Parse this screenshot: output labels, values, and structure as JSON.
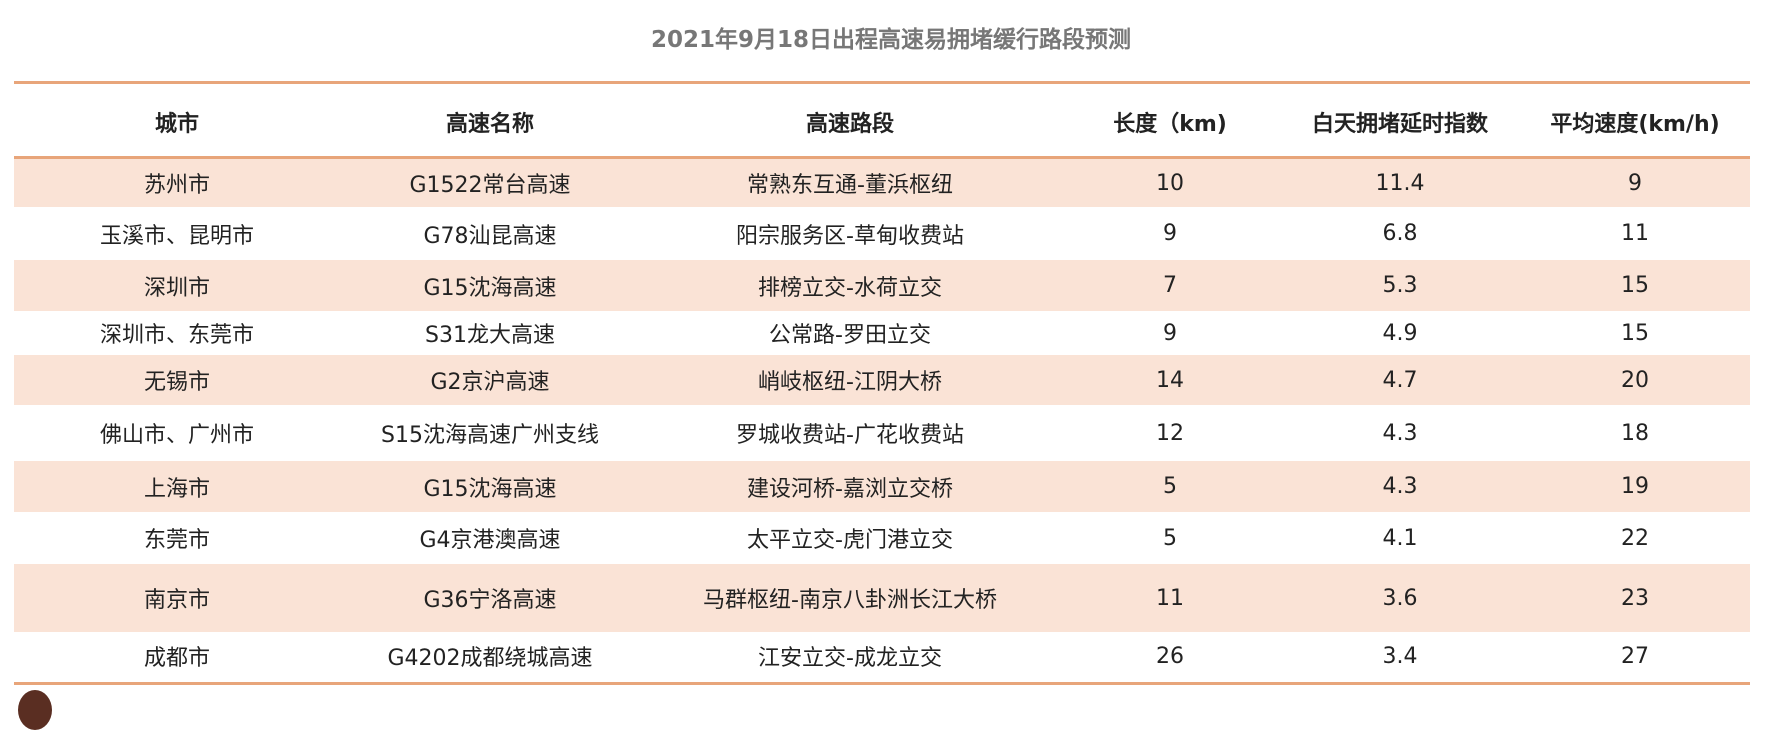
{
  "title": "2021年9月18日出程高速易拥堵缓行路段预测",
  "colors": {
    "accent_line": "#e8a57a",
    "stripe": "#fae3d6"
  },
  "table": {
    "headers": [
      "城市",
      "高速名称",
      "高速路段",
      "长度（km)",
      "白天拥堵延时指数",
      "平均速度(km/h)"
    ],
    "rows": [
      [
        "苏州市",
        "G1522常台高速",
        "常熟东互通-董浜枢纽",
        "10",
        "11.4",
        "9"
      ],
      [
        "玉溪市、昆明市",
        "G78汕昆高速",
        "阳宗服务区-草甸收费站",
        "9",
        "6.8",
        "11"
      ],
      [
        "深圳市",
        "G15沈海高速",
        "排榜立交-水荷立交",
        "7",
        "5.3",
        "15"
      ],
      [
        "深圳市、东莞市",
        "S31龙大高速",
        "公常路-罗田立交",
        "9",
        "4.9",
        "15"
      ],
      [
        "无锡市",
        "G2京沪高速",
        "峭岐枢纽-江阴大桥",
        "14",
        "4.7",
        "20"
      ],
      [
        "佛山市、广州市",
        "S15沈海高速广州支线",
        "罗城收费站-广花收费站",
        "12",
        "4.3",
        "18"
      ],
      [
        "上海市",
        "G15沈海高速",
        "建设河桥-嘉浏立交桥",
        "5",
        "4.3",
        "19"
      ],
      [
        "东莞市",
        "G4京港澳高速",
        "太平立交-虎门港立交",
        "5",
        "4.1",
        "22"
      ],
      [
        "南京市",
        "G36宁洛高速",
        "马群枢纽-南京八卦洲长江大桥",
        "11",
        "3.6",
        "23"
      ],
      [
        "成都市",
        "G4202成都绕城高速",
        "江安立交-成龙立交",
        "26",
        "3.4",
        "27"
      ]
    ]
  }
}
